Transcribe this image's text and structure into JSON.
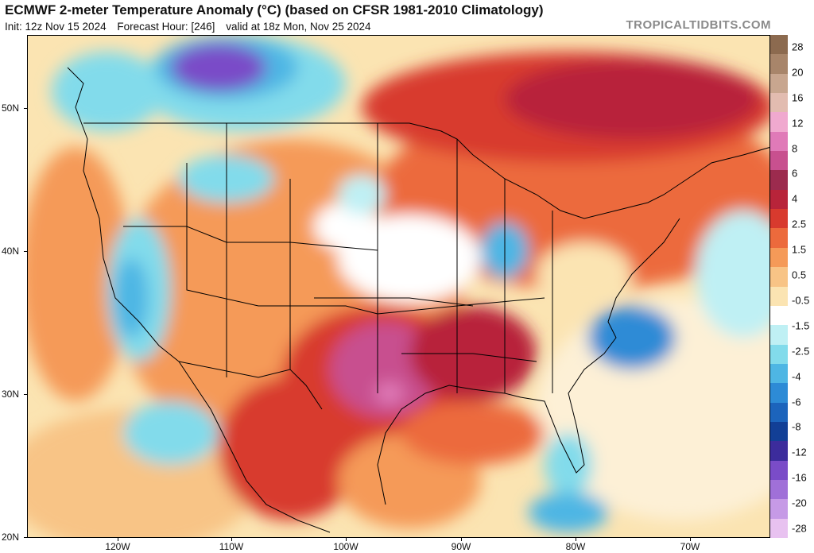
{
  "header": {
    "title": "ECMWF 2-meter Temperature Anomaly (°C) (based on CFSR 1981-2010 Climatology)",
    "init": "Init: 12z Nov 15 2024",
    "forecast_hour": "Forecast Hour: [246]",
    "valid": "valid at 18z Mon, Nov 25 2024",
    "brand": "TROPICALTIDBITS.COM"
  },
  "map": {
    "lat_labels": [
      "50N",
      "40N",
      "30N",
      "20N"
    ],
    "lon_labels": [
      "120W",
      "110W",
      "100W",
      "90W",
      "80W",
      "70W"
    ]
  },
  "legend": {
    "labels": [
      "28",
      "20",
      "16",
      "12",
      "8",
      "6",
      "4",
      "2.5",
      "1.5",
      "0.5",
      "-0.5",
      "-1.5",
      "-2.5",
      "-4",
      "-6",
      "-8",
      "-12",
      "-16",
      "-20",
      "-28"
    ],
    "colors": [
      "#8c6a4f",
      "#a8856a",
      "#c8a68f",
      "#e2bcb0",
      "#f0a9cf",
      "#e07ab8",
      "#c8508f",
      "#9c2b4e",
      "#b8243a",
      "#d83a2e",
      "#ec6a3c",
      "#f59a58",
      "#f8c486",
      "#fbe4b2",
      "#ffffff",
      "#bff0f4",
      "#82dbeb",
      "#4eb6e4",
      "#2d8bd6",
      "#1c64bc",
      "#123f96",
      "#3c2c9c",
      "#7a4cc8",
      "#a070d8",
      "#c69ae6",
      "#e8c2f0"
    ]
  }
}
